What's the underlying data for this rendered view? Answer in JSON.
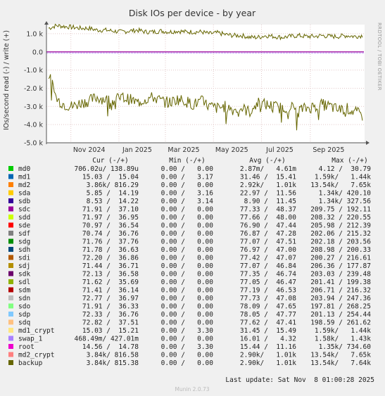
{
  "title": "Disk IOs per device - by year",
  "ylabel": "IOs/second read (-) / write (+)",
  "side_label": "RRDTOOL / TOBI OETIKER",
  "footer": "Munin 2.0.73",
  "last_update": "Last update: Sat Nov  8 01:00:28 2025",
  "legend_header": [
    "Cur (-/+)",
    "Min (-/+)",
    "Avg (-/+)",
    "Max (-/+)"
  ],
  "legend": [
    {
      "name": "md0",
      "color": "#00cc00",
      "cur": "706.02u/ 138.89u",
      "min": "0.00 /   0.00",
      "avg": "2.87m/   4.61m",
      "max": "4.12 /  30.79"
    },
    {
      "name": "md1",
      "color": "#0066b3",
      "cur": "15.03 /  15.04",
      "min": "0.00 /   3.17",
      "avg": "31.46 /  15.41",
      "max": "1.59k/   1.44k"
    },
    {
      "name": "md2",
      "color": "#ff8000",
      "cur": "3.86k/ 816.29",
      "min": "0.00 /   0.00",
      "avg": "2.92k/   1.01k",
      "max": "13.54k/   7.65k"
    },
    {
      "name": "sda",
      "color": "#ffcc00",
      "cur": "5.85 /  14.19",
      "min": "0.00 /   3.16",
      "avg": "22.97 /  11.56",
      "max": "1.34k/ 420.10"
    },
    {
      "name": "sdb",
      "color": "#330099",
      "cur": "8.53 /  14.22",
      "min": "0.00 /   3.14",
      "avg": "8.90 /  11.45",
      "max": "1.34k/ 327.56"
    },
    {
      "name": "sdc",
      "color": "#990099",
      "cur": "71.91 /  37.10",
      "min": "0.00 /   0.00",
      "avg": "77.33 /  48.37",
      "max": "209.75 / 192.11"
    },
    {
      "name": "sdd",
      "color": "#ccff00",
      "cur": "71.97 /  36.95",
      "min": "0.00 /   0.00",
      "avg": "77.66 /  48.00",
      "max": "208.32 / 220.55"
    },
    {
      "name": "sde",
      "color": "#ff0000",
      "cur": "70.97 /  36.54",
      "min": "0.00 /   0.00",
      "avg": "76.90 /  47.44",
      "max": "205.98 / 212.39"
    },
    {
      "name": "sdf",
      "color": "#808080",
      "cur": "70.74 /  36.76",
      "min": "0.00 /   0.00",
      "avg": "76.87 /  47.28",
      "max": "202.06 / 215.32"
    },
    {
      "name": "sdg",
      "color": "#008f00",
      "cur": "71.76 /  37.76",
      "min": "0.00 /   0.00",
      "avg": "77.07 /  47.51",
      "max": "202.18 / 203.56"
    },
    {
      "name": "sdh",
      "color": "#00487d",
      "cur": "71.78 /  36.63",
      "min": "0.00 /   0.00",
      "avg": "76.97 /  47.00",
      "max": "208.98 / 200.33"
    },
    {
      "name": "sdi",
      "color": "#b35a00",
      "cur": "72.20 /  36.86",
      "min": "0.00 /   0.00",
      "avg": "77.42 /  47.07",
      "max": "200.27 / 216.61"
    },
    {
      "name": "sdj",
      "color": "#b38f00",
      "cur": "71.44 /  36.71",
      "min": "0.00 /   0.00",
      "avg": "77.07 /  46.84",
      "max": "206.36 / 177.87"
    },
    {
      "name": "sdk",
      "color": "#6b006b",
      "cur": "72.13 /  36.58",
      "min": "0.00 /   0.00",
      "avg": "77.35 /  46.74",
      "max": "203.03 / 239.48"
    },
    {
      "name": "sdl",
      "color": "#8fb300",
      "cur": "71.62 /  35.69",
      "min": "0.00 /   0.00",
      "avg": "77.05 /  46.47",
      "max": "201.41 / 199.38"
    },
    {
      "name": "sdm",
      "color": "#b30000",
      "cur": "71.41 /  36.14",
      "min": "0.00 /   0.00",
      "avg": "77.19 /  46.53",
      "max": "206.71 / 216.32"
    },
    {
      "name": "sdn",
      "color": "#bebebe",
      "cur": "72.77 /  36.97",
      "min": "0.00 /   0.00",
      "avg": "77.73 /  47.08",
      "max": "203.94 / 247.36"
    },
    {
      "name": "sdo",
      "color": "#80ff80",
      "cur": "71.91 /  36.33",
      "min": "0.00 /   0.00",
      "avg": "78.09 /  47.65",
      "max": "197.81 / 268.25"
    },
    {
      "name": "sdp",
      "color": "#80c9ff",
      "cur": "72.33 /  36.76",
      "min": "0.00 /   0.00",
      "avg": "78.05 /  47.77",
      "max": "201.13 / 254.44"
    },
    {
      "name": "sdq",
      "color": "#ffc080",
      "cur": "72.82 /  37.51",
      "min": "0.00 /   0.00",
      "avg": "77.62 /  47.41",
      "max": "198.59 / 261.62"
    },
    {
      "name": "md1_crypt",
      "color": "#ffe680",
      "cur": "15.03 /  15.21",
      "min": "0.00 /   3.30",
      "avg": "31.45 /  15.49",
      "max": "1.59k/   1.44k"
    },
    {
      "name": "swap_1",
      "color": "#aa80ff",
      "cur": "468.49m/ 427.01m",
      "min": "0.00 /   0.00",
      "avg": "16.01 /   4.32",
      "max": "1.58k/   1.43k"
    },
    {
      "name": "root",
      "color": "#ee00cc",
      "cur": "14.56 /  14.78",
      "min": "0.00 /   3.30",
      "avg": "15.44 /  11.16",
      "max": "1.35k/ 734.60"
    },
    {
      "name": "md2_crypt",
      "color": "#ff8080",
      "cur": "3.84k/ 816.58",
      "min": "0.00 /   0.00",
      "avg": "2.90k/   1.01k",
      "max": "13.54k/   7.65k"
    },
    {
      "name": "backup",
      "color": "#666600",
      "cur": "3.84k/ 815.38",
      "min": "0.00 /   0.00",
      "avg": "2.90k/   1.01k",
      "max": "13.54k/   7.64k"
    }
  ],
  "chart_data": {
    "type": "line",
    "title": "Disk IOs per device - by year",
    "ylabel": "IOs/second read (-) / write (+)",
    "ylim": [
      -5000,
      1500
    ],
    "yticks": [
      1000,
      0,
      -1000,
      -2000,
      -3000,
      -4000,
      -5000
    ],
    "ytick_labels": [
      "1.0 k",
      "0.0",
      "-1.0 k",
      "-2.0 k",
      "-3.0 k",
      "-4.0 k",
      "-5.0 k"
    ],
    "xlim": [
      "2024-10-01",
      "2025-11-08"
    ],
    "xticks": [
      "2024-11-01",
      "2025-01-01",
      "2025-03-01",
      "2025-05-01",
      "2025-07-01",
      "2025-09-01"
    ],
    "xtick_labels": [
      "Nov 2024",
      "Jan 2025",
      "Mar 2025",
      "May 2025",
      "Jul 2025",
      "Sep 2025"
    ],
    "grid": true,
    "series_summary": [
      {
        "name": "backup",
        "color": "#666600",
        "write_avg_k": 1.01,
        "read_avg_k": -2.9
      },
      {
        "name": "md2",
        "color": "#ff8000",
        "write_avg_k": 1.01,
        "read_avg_k": -2.92
      },
      {
        "name": "md2_crypt",
        "color": "#ff8080",
        "write_avg_k": 1.01,
        "read_avg_k": -2.9
      }
    ],
    "backup_write_k": [
      1.3,
      1.45,
      1.4,
      1.35,
      1.3,
      1.3,
      1.2,
      1.2,
      1.15,
      1.1,
      1.15,
      1.2,
      1.1,
      1.1,
      1.15,
      1.1,
      1.15,
      1.1,
      1.1,
      1.1,
      1.0,
      1.05,
      0.95,
      0.9,
      0.9,
      0.8,
      0.8,
      0.9,
      0.85,
      0.8,
      0.85,
      0.9,
      0.85,
      0.85,
      0.9,
      0.85,
      0.85,
      0.9,
      0.85,
      0.9
    ],
    "backup_read_k": [
      -1.2,
      -2.6,
      -2.9,
      -3.0,
      -2.8,
      -2.7,
      -2.5,
      -2.6,
      -2.7,
      -2.5,
      -2.6,
      -2.8,
      -2.6,
      -2.5,
      -2.7,
      -2.8,
      -2.6,
      -2.7,
      -2.9,
      -2.7,
      -3.0,
      -3.1,
      -3.0,
      -3.2,
      -3.1,
      -3.3,
      -2.8,
      -2.9,
      -3.0,
      -3.1,
      -3.0,
      -3.2,
      -3.1,
      -3.0,
      -2.9,
      -3.0,
      -3.2,
      -3.1,
      -3.3,
      -3.5
    ]
  }
}
